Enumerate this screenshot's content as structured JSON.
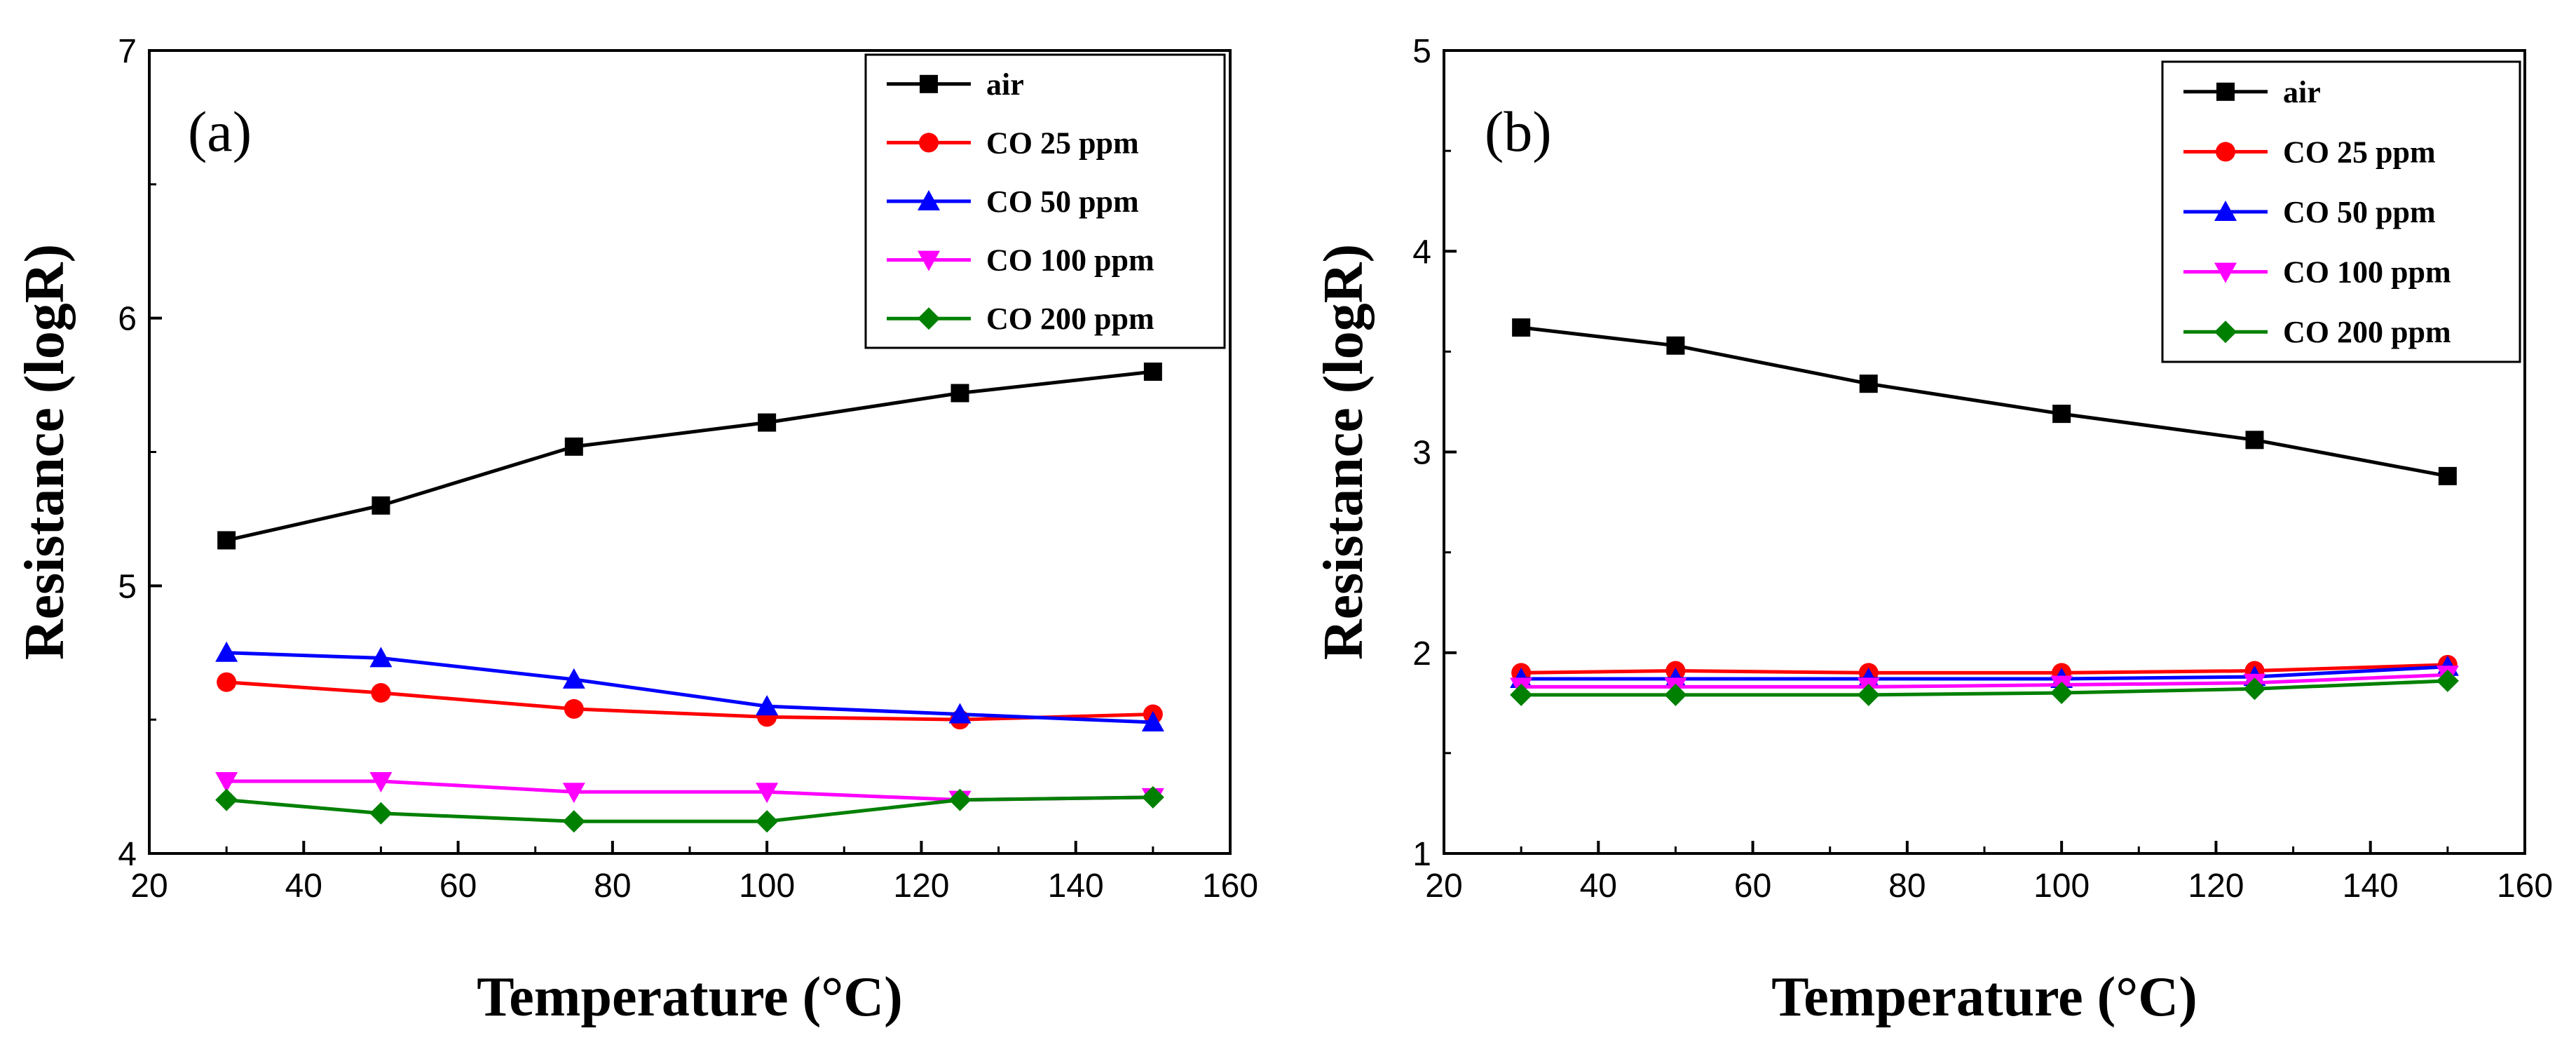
{
  "chart_data": [
    {
      "type": "line",
      "panel_label": "(a)",
      "xlabel": "Temperature (°C)",
      "ylabel": "Resistance (logR)",
      "xlim": [
        20,
        160
      ],
      "ylim": [
        4,
        7
      ],
      "xticks": [
        20,
        40,
        60,
        80,
        100,
        120,
        140,
        160
      ],
      "yticks": [
        4,
        5,
        6,
        7
      ],
      "legend_position": "top-right",
      "x": [
        30,
        50,
        75,
        100,
        125,
        150
      ],
      "series": [
        {
          "name": "air",
          "color": "#000000",
          "marker": "square",
          "values": [
            5.17,
            5.3,
            5.52,
            5.61,
            5.72,
            5.8
          ]
        },
        {
          "name": "CO 25 ppm",
          "color": "#ff0000",
          "marker": "circle",
          "values": [
            4.64,
            4.6,
            4.54,
            4.51,
            4.5,
            4.52
          ]
        },
        {
          "name": "CO 50 ppm",
          "color": "#0000ff",
          "marker": "triangle-up",
          "values": [
            4.75,
            4.73,
            4.65,
            4.55,
            4.52,
            4.49
          ]
        },
        {
          "name": "CO 100 ppm",
          "color": "#ff00ff",
          "marker": "triangle-down",
          "values": [
            4.27,
            4.27,
            4.23,
            4.23,
            4.2,
            4.21
          ]
        },
        {
          "name": "CO 200 ppm",
          "color": "#008000",
          "marker": "diamond",
          "values": [
            4.2,
            4.15,
            4.12,
            4.12,
            4.2,
            4.21
          ]
        }
      ]
    },
    {
      "type": "line",
      "panel_label": "(b)",
      "xlabel": "Temperature (°C)",
      "ylabel": "Resistance (logR)",
      "xlim": [
        20,
        160
      ],
      "ylim": [
        1,
        5
      ],
      "xticks": [
        20,
        40,
        60,
        80,
        100,
        120,
        140,
        160
      ],
      "yticks": [
        1,
        2,
        3,
        4,
        5
      ],
      "legend_position": "top-right",
      "x": [
        30,
        50,
        75,
        100,
        125,
        150
      ],
      "series": [
        {
          "name": "air",
          "color": "#000000",
          "marker": "square",
          "values": [
            3.62,
            3.53,
            3.34,
            3.19,
            3.06,
            2.88
          ]
        },
        {
          "name": "CO 25 ppm",
          "color": "#ff0000",
          "marker": "circle",
          "values": [
            1.9,
            1.91,
            1.9,
            1.9,
            1.91,
            1.94
          ]
        },
        {
          "name": "CO 50 ppm",
          "color": "#0000ff",
          "marker": "triangle-up",
          "values": [
            1.87,
            1.87,
            1.87,
            1.87,
            1.88,
            1.93
          ]
        },
        {
          "name": "CO 100 ppm",
          "color": "#ff00ff",
          "marker": "triangle-down",
          "values": [
            1.83,
            1.83,
            1.83,
            1.84,
            1.85,
            1.89
          ]
        },
        {
          "name": "CO 200 ppm",
          "color": "#008000",
          "marker": "diamond",
          "values": [
            1.79,
            1.79,
            1.79,
            1.8,
            1.82,
            1.86
          ]
        }
      ]
    }
  ]
}
